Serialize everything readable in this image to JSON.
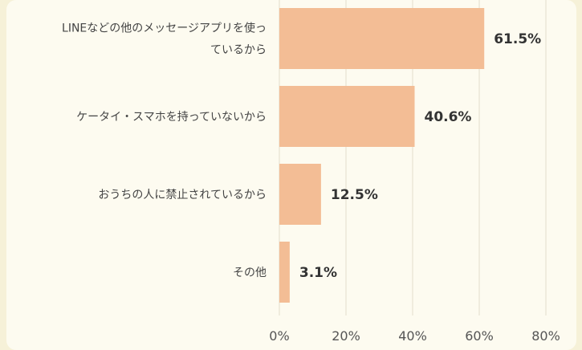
{
  "chart_data": {
    "type": "bar",
    "orientation": "horizontal",
    "categories": [
      [
        "LINEなどの他のメッセージアプリを使っ",
        "ているから"
      ],
      [
        "ケータイ・スマホを持っていないから"
      ],
      [
        "おうちの人に禁止されているから"
      ],
      [
        "その他"
      ]
    ],
    "values": [
      61.5,
      40.6,
      12.5,
      3.1
    ],
    "value_labels": [
      "61.5%",
      "40.6%",
      "12.5%",
      "3.1%"
    ],
    "xlim": [
      0,
      80
    ],
    "ticks": [
      0,
      20,
      40,
      60,
      80
    ],
    "tick_labels": [
      "0%",
      "20%",
      "40%",
      "60%",
      "80%"
    ],
    "grid": true,
    "legend": "none",
    "colors": {
      "bar": "#f3bd95",
      "grid": "#e2ddcc",
      "background": "#fdfbf0",
      "outer": "#f6f1d8"
    }
  }
}
